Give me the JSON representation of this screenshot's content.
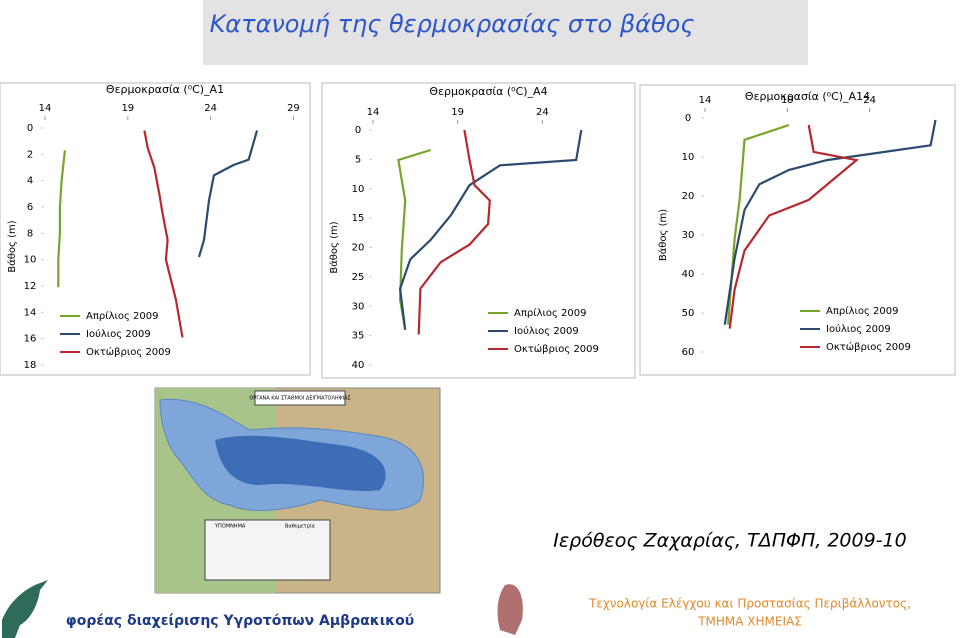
{
  "header": {
    "title": "Κατανομή της θερμοκρασίας στο βάθος"
  },
  "chart_data": [
    {
      "type": "line",
      "title": "Θερμοκρασία (⁰C)_A1",
      "y_label": "Βάθος (m)",
      "xlim": [
        14,
        30
      ],
      "xticks": [
        14,
        19,
        24,
        29
      ],
      "ylim": [
        0,
        18
      ],
      "yticks": [
        0,
        2,
        4,
        6,
        8,
        10,
        12,
        14,
        16,
        18
      ],
      "y_inverted": true,
      "x_axis_top": true,
      "legend": "lower left",
      "series": [
        {
          "name": "Απρίλιος 2009",
          "color": "#77a52b",
          "x": [
            15.2,
            15.0,
            14.9,
            14.9,
            14.8,
            14.8
          ],
          "y": [
            1.7,
            4,
            6,
            8,
            10,
            12.1
          ]
        },
        {
          "name": "Ιούλιος 2009",
          "color": "#2c4a6e",
          "x": [
            26.8,
            26.3,
            25.4,
            24.2,
            23.9,
            23.6,
            23.3
          ],
          "y": [
            0.2,
            2.4,
            2.8,
            3.6,
            5.5,
            8.5,
            9.8
          ]
        },
        {
          "name": "Οκτώβριος 2009",
          "color": "#b5282e",
          "x": [
            20.0,
            20.2,
            20.6,
            20.9,
            21.1,
            21.4,
            21.3,
            21.9,
            22.3
          ],
          "y": [
            0.2,
            1.5,
            3,
            5,
            6.5,
            8.5,
            10,
            13,
            15.9
          ]
        }
      ]
    },
    {
      "type": "line",
      "title": "Θερμοκρασία (⁰C)_A4",
      "y_label": "Βάθος (m)",
      "xlim": [
        14,
        29
      ],
      "xticks": [
        14,
        19,
        24
      ],
      "ylim": [
        0,
        40
      ],
      "yticks": [
        0,
        5,
        10,
        15,
        20,
        25,
        30,
        35,
        40
      ],
      "y_inverted": true,
      "x_axis_top": true,
      "legend": "lower right",
      "series": [
        {
          "name": "Απρίλιος 2009",
          "color": "#77a52b",
          "x": [
            17.4,
            15.5,
            15.9,
            15.7,
            15.6,
            15.9
          ],
          "y": [
            3.4,
            5.1,
            12,
            20.4,
            28.9,
            34
          ]
        },
        {
          "name": "Ιούλιος 2009",
          "color": "#2c4a6e",
          "x": [
            26.3,
            26.0,
            21.5,
            19.7,
            18.6,
            17.4,
            16.2,
            15.6,
            15.9
          ],
          "y": [
            0,
            5.1,
            6,
            9.4,
            14.5,
            18.7,
            22,
            27,
            34
          ]
        },
        {
          "name": "Οκτώβριος 2009",
          "color": "#b5282e",
          "x": [
            19.4,
            19.7,
            20.0,
            20.9,
            20.8,
            19.7,
            18.0,
            16.8,
            16.7
          ],
          "y": [
            0,
            5.1,
            9.4,
            12,
            16,
            19.5,
            22.5,
            27,
            34.8
          ]
        }
      ]
    },
    {
      "type": "line",
      "title": "Θερμοκρασία (⁰C)_A14",
      "y_label": "Βάθος (m)",
      "xlim": [
        14,
        29
      ],
      "xticks": [
        14,
        19,
        24
      ],
      "ylim": [
        0,
        60
      ],
      "yticks": [
        0,
        10,
        20,
        30,
        40,
        50,
        60
      ],
      "y_inverted": true,
      "x_axis_top": true,
      "legend": "lower right",
      "series": [
        {
          "name": "Απρίλιος 2009",
          "color": "#77a52b",
          "x": [
            19.1,
            16.4,
            16.1,
            15.8,
            15.4
          ],
          "y": [
            1.8,
            5.6,
            21,
            31,
            53
          ]
        },
        {
          "name": "Ιούλιος 2009",
          "color": "#2c4a6e",
          "x": [
            28.0,
            27.7,
            21.4,
            19.1,
            17.3,
            16.4,
            15.8,
            15.2
          ],
          "y": [
            0.5,
            7,
            10.8,
            13.3,
            17,
            23.6,
            36,
            53
          ]
        },
        {
          "name": "Οκτώβριος 2009",
          "color": "#b5282e",
          "x": [
            20.3,
            20.6,
            23.2,
            20.3,
            17.9,
            16.4,
            15.8,
            15.5
          ],
          "y": [
            1.8,
            8.7,
            10.8,
            21,
            25,
            34,
            44,
            54
          ]
        }
      ]
    }
  ],
  "map": {
    "title": "ΟΡΓΑΝΑ ΚΑΙ ΣΤΑΘΜΟΙ ΔΕΙΓΜΑΤΟΛΗΨΙΑΣ",
    "legend_title": "ΥΠΟΜΝΗΜΑ",
    "bathymetry": "Βαθυμετρία"
  },
  "author": "Ιερόθεος Ζαχαρίας, ΤΔΠΦΠ, 2009-10",
  "footer": {
    "left": "φορέας διαχείρισης Υγροτόπων Αμβρακικού",
    "right_1": "Τεχνολογία Ελέγχου και Προστασίας Περιβάλλοντος,",
    "right_2": "ΤΜΗΜΑ ΧΗΜΕΙΑΣ"
  }
}
